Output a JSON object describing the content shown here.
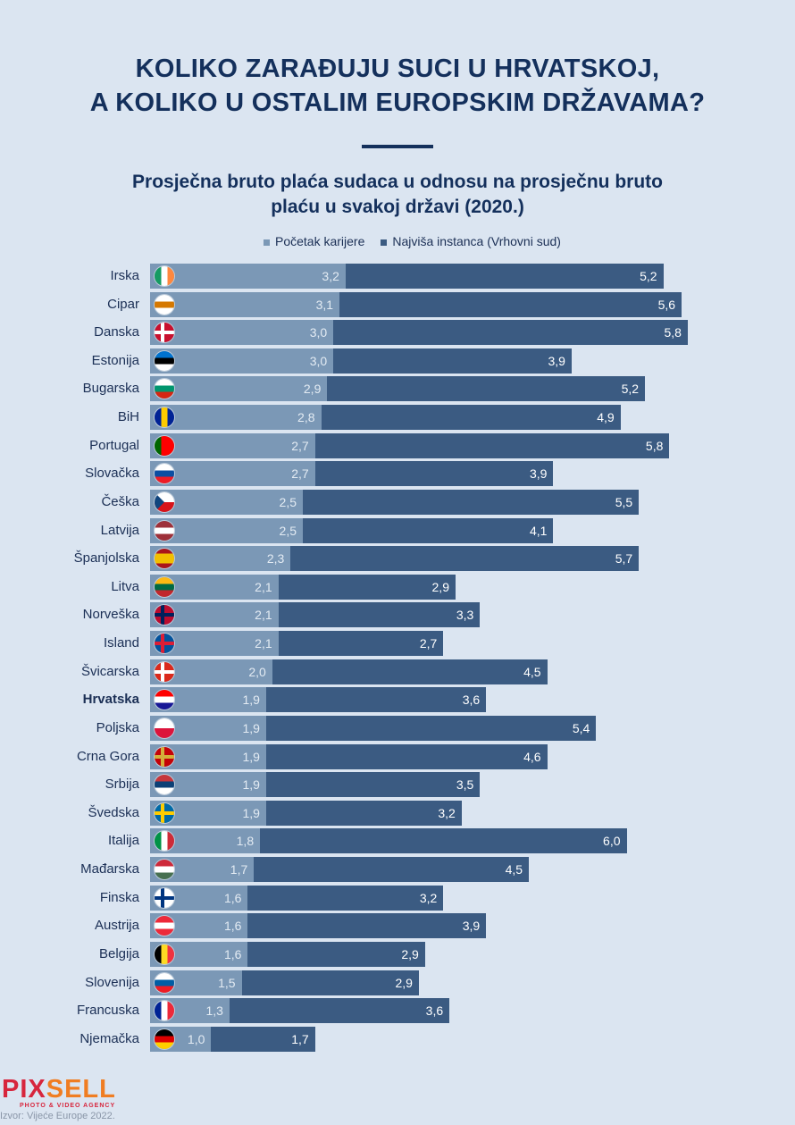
{
  "title_line1": "KOLIKO ZARAĐUJU SUCI U HRVATSKOJ,",
  "title_line2": "A KOLIKO U OSTALIM EUROPSKIM DRŽAVAMA?",
  "subtitle_line1": "Prosječna bruto plaća sudaca u odnosu na prosječnu bruto",
  "subtitle_line2": "plaću u svakoj državi (2020.)",
  "logo": {
    "part1": "PIX",
    "part2": "SELL",
    "tagline": "PHOTO & VIDEO AGENCY"
  },
  "source": "Izvor: Vijeće Europe 2022.",
  "colors": {
    "start": "#7b98b6",
    "supreme": "#3b5b82",
    "title": "#14305c"
  },
  "chart_data": {
    "type": "bar",
    "orientation": "horizontal",
    "stacked": true,
    "legend_position": "top",
    "grid": false,
    "categories": [
      "Irska",
      "Cipar",
      "Danska",
      "Estonija",
      "Bugarska",
      "BiH",
      "Portugal",
      "Slovačka",
      "Češka",
      "Latvija",
      "Španjolska",
      "Litva",
      "Norveška",
      "Island",
      "Švicarska",
      "Hrvatska",
      "Poljska",
      "Crna Gora",
      "Srbija",
      "Švedska",
      "Italija",
      "Mađarska",
      "Finska",
      "Austrija",
      "Belgija",
      "Slovenija",
      "Francuska",
      "Njemačka"
    ],
    "highlight": "Hrvatska",
    "series": [
      {
        "name": "Početak karijere",
        "values": [
          3.2,
          3.1,
          3.0,
          3.0,
          2.9,
          2.8,
          2.7,
          2.7,
          2.5,
          2.5,
          2.3,
          2.1,
          2.1,
          2.1,
          2.0,
          1.9,
          1.9,
          1.9,
          1.9,
          1.9,
          1.8,
          1.7,
          1.6,
          1.6,
          1.6,
          1.5,
          1.3,
          1.0
        ]
      },
      {
        "name": "Najviša instanca (Vrhovni sud)",
        "values": [
          5.2,
          5.6,
          5.8,
          3.9,
          5.2,
          4.9,
          5.8,
          3.9,
          5.5,
          4.1,
          5.7,
          2.9,
          3.3,
          2.7,
          4.5,
          3.6,
          5.4,
          4.6,
          3.5,
          3.2,
          6.0,
          4.5,
          3.2,
          3.9,
          2.9,
          2.9,
          3.6,
          1.7
        ]
      }
    ],
    "value_labels": [
      [
        "3,2",
        "3,1",
        "3,0",
        "3,0",
        "2,9",
        "2,8",
        "2,7",
        "2,7",
        "2,5",
        "2,5",
        "2,3",
        "2,1",
        "2,1",
        "2,1",
        "2,0",
        "1,9",
        "1,9",
        "1,9",
        "1,9",
        "1,9",
        "1,8",
        "1,7",
        "1,6",
        "1,6",
        "1,6",
        "1,5",
        "1,3",
        "1,0"
      ],
      [
        "5,2",
        "5,6",
        "5,8",
        "3,9",
        "5,2",
        "4,9",
        "5,8",
        "3,9",
        "5,5",
        "4,1",
        "5,7",
        "2,9",
        "3,3",
        "2,7",
        "4,5",
        "3,6",
        "5,4",
        "4,6",
        "3,5",
        "3,2",
        "6,0",
        "4,5",
        "3,2",
        "3,9",
        "2,9",
        "2,9",
        "3,6",
        "1,7"
      ]
    ],
    "flags": [
      {
        "d": "v",
        "s": [
          "#169b62",
          "#ffffff",
          "#ff883e"
        ]
      },
      {
        "d": "h",
        "s": [
          "#ffffff",
          "#d57800",
          "#ffffff"
        ]
      },
      {
        "d": "h",
        "s": [
          "#c8102e"
        ],
        "cross": "#ffffff"
      },
      {
        "d": "h",
        "s": [
          "#0072ce",
          "#000000",
          "#ffffff"
        ]
      },
      {
        "d": "h",
        "s": [
          "#ffffff",
          "#00966e",
          "#d62612"
        ]
      },
      {
        "d": "v",
        "s": [
          "#002395",
          "#fecb00",
          "#002395"
        ]
      },
      {
        "d": "v",
        "s": [
          "#006600",
          "#ff0000",
          "#ff0000"
        ]
      },
      {
        "d": "h",
        "s": [
          "#ffffff",
          "#0b4ea2",
          "#ee1c25"
        ]
      },
      {
        "d": "h",
        "s": [
          "#ffffff",
          "#d7141a"
        ],
        "tri": "#11457e"
      },
      {
        "d": "h",
        "s": [
          "#9e3039",
          "#ffffff",
          "#9e3039"
        ]
      },
      {
        "d": "h",
        "s": [
          "#aa151b",
          "#f1bf00",
          "#f1bf00",
          "#aa151b"
        ]
      },
      {
        "d": "h",
        "s": [
          "#fdb913",
          "#006a44",
          "#c1272d"
        ]
      },
      {
        "d": "h",
        "s": [
          "#ba0c2f"
        ],
        "cross": "#00205b"
      },
      {
        "d": "h",
        "s": [
          "#02529c"
        ],
        "cross": "#dc1e35"
      },
      {
        "d": "h",
        "s": [
          "#da291c"
        ],
        "cross": "#ffffff"
      },
      {
        "d": "h",
        "s": [
          "#ff0000",
          "#ffffff",
          "#171796"
        ]
      },
      {
        "d": "h",
        "s": [
          "#ffffff",
          "#dc143c"
        ]
      },
      {
        "d": "h",
        "s": [
          "#c40308"
        ],
        "cross": "#d4af3a"
      },
      {
        "d": "h",
        "s": [
          "#c6363c",
          "#0c4076",
          "#ffffff"
        ]
      },
      {
        "d": "h",
        "s": [
          "#006aa7"
        ],
        "cross": "#fecc00"
      },
      {
        "d": "v",
        "s": [
          "#009246",
          "#ffffff",
          "#ce2b37"
        ]
      },
      {
        "d": "h",
        "s": [
          "#ce2939",
          "#ffffff",
          "#477050"
        ]
      },
      {
        "d": "h",
        "s": [
          "#ffffff"
        ],
        "cross": "#003580"
      },
      {
        "d": "h",
        "s": [
          "#ed2939",
          "#ffffff",
          "#ed2939"
        ]
      },
      {
        "d": "v",
        "s": [
          "#000000",
          "#fdda24",
          "#ef3340"
        ]
      },
      {
        "d": "h",
        "s": [
          "#ffffff",
          "#005da4",
          "#ed1c24"
        ]
      },
      {
        "d": "v",
        "s": [
          "#002395",
          "#ffffff",
          "#ed2939"
        ]
      },
      {
        "d": "h",
        "s": [
          "#000000",
          "#dd0000",
          "#ffce00"
        ]
      }
    ]
  }
}
